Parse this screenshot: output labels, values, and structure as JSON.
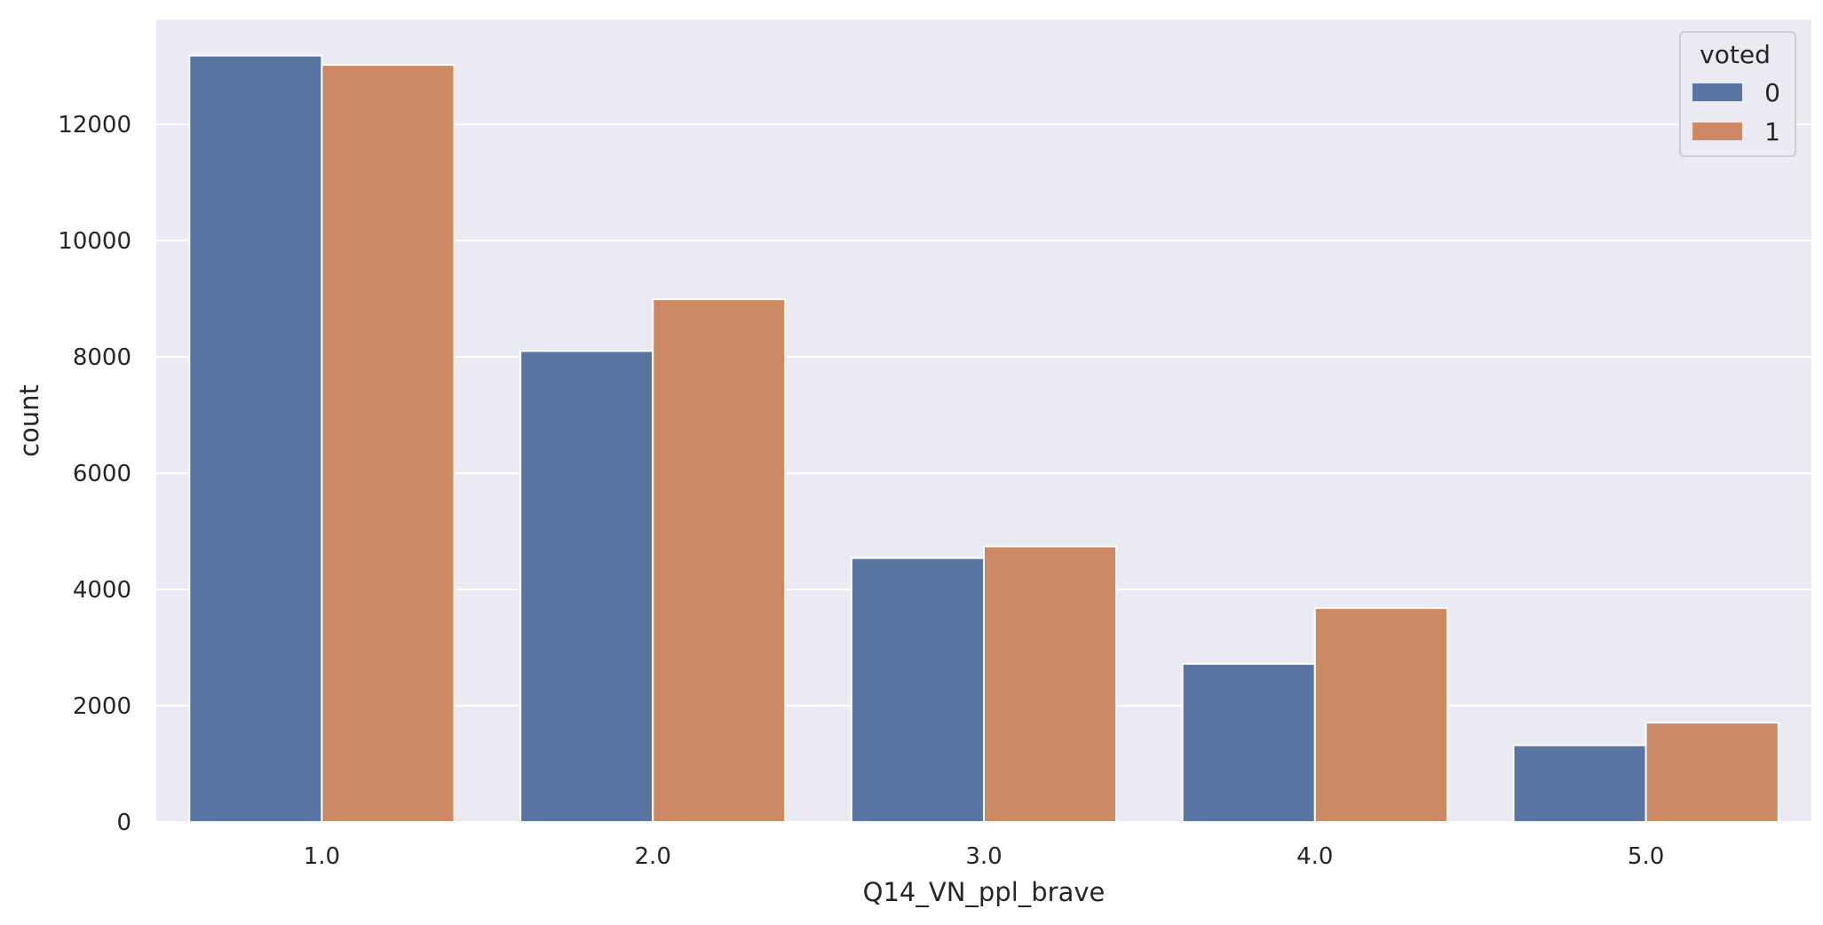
{
  "chart_data": {
    "type": "bar",
    "categories": [
      "1.0",
      "2.0",
      "3.0",
      "4.0",
      "5.0"
    ],
    "series": [
      {
        "name": "0",
        "values": [
          13180,
          8100,
          4540,
          2720,
          1320
        ],
        "color": "#5875a4"
      },
      {
        "name": "1",
        "values": [
          13020,
          8990,
          4740,
          3680,
          1710
        ],
        "color": "#cc8963"
      }
    ],
    "xlabel": "Q14_VN_ppl_brave",
    "ylabel": "count",
    "ylim": [
      0,
      13800
    ],
    "yticks": [
      0,
      2000,
      4000,
      6000,
      8000,
      10000,
      12000
    ],
    "grid": true,
    "background": "#eaeaf2",
    "legend": {
      "title": "voted",
      "position": "top-right"
    }
  }
}
